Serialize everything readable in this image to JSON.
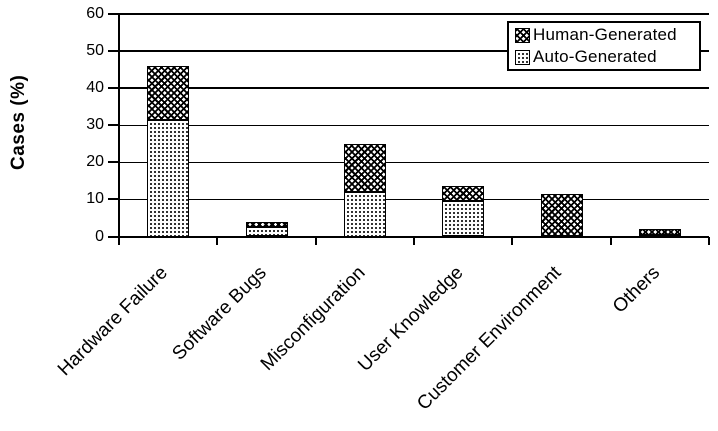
{
  "chart_data": {
    "type": "bar",
    "variant": "stacked",
    "title": "",
    "ylabel": "Cases (%)",
    "xlabel": "",
    "ylim": [
      0,
      60
    ],
    "yticks": [
      0,
      10,
      20,
      30,
      40,
      50,
      60
    ],
    "grid": true,
    "legend_position": "top-right",
    "categories": [
      "Hardware Failure",
      "Software Bugs",
      "Misconfiguration",
      "User Knowledge",
      "Customer Environment",
      "Others"
    ],
    "series": [
      {
        "name": "Auto-Generated",
        "pattern": "light-dots",
        "values": [
          31.5,
          2.5,
          12.0,
          9.5,
          0.0,
          0.5
        ]
      },
      {
        "name": "Human-Generated",
        "pattern": "dark-trellis",
        "values": [
          14.5,
          1.5,
          13.0,
          4.0,
          11.5,
          1.5
        ]
      }
    ],
    "legend_entries": [
      "Human-Generated",
      "Auto-Generated"
    ],
    "colors": {
      "foreground": "#000000",
      "background": "#ffffff"
    }
  }
}
